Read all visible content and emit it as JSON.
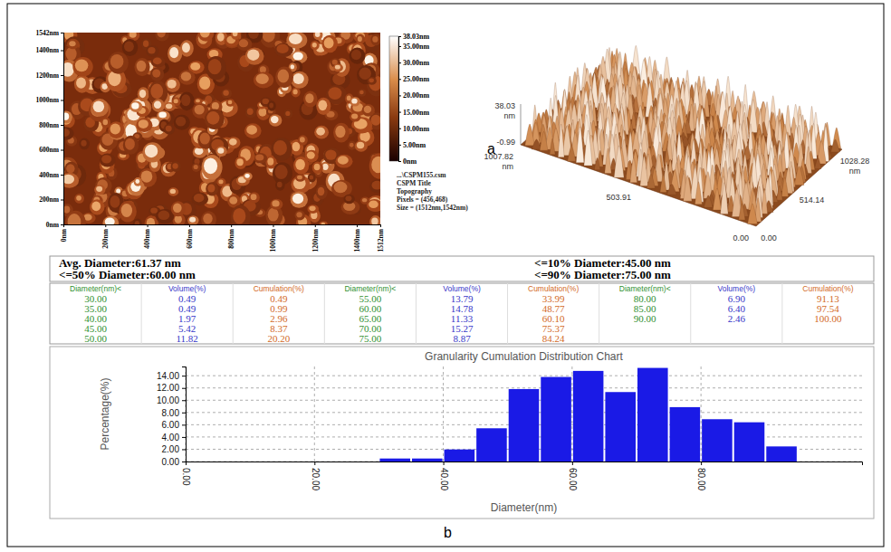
{
  "panel_labels": [
    "a",
    "b"
  ],
  "afm_image": {
    "xlim": [
      0,
      1512
    ],
    "xticks": [
      {
        "value": 0,
        "label": "0nm"
      },
      {
        "value": 200,
        "label": "200nm"
      },
      {
        "value": 400,
        "label": "400nm"
      },
      {
        "value": 600,
        "label": "600nm"
      },
      {
        "value": 800,
        "label": "800nm"
      },
      {
        "value": 1000,
        "label": "1000nm"
      },
      {
        "value": 1200,
        "label": "1200nm"
      },
      {
        "value": 1400,
        "label": "1400nm"
      },
      {
        "value": 1512,
        "label": "1512nm"
      }
    ],
    "ylim": [
      0,
      1542
    ],
    "yticks": [
      {
        "value": 0,
        "label": "0nm"
      },
      {
        "value": 200,
        "label": "200nm"
      },
      {
        "value": 400,
        "label": "400nm"
      },
      {
        "value": 600,
        "label": "600nm"
      },
      {
        "value": 800,
        "label": "800nm"
      },
      {
        "value": 1000,
        "label": "1000nm"
      },
      {
        "value": 1200,
        "label": "1200nm"
      },
      {
        "value": 1400,
        "label": "1400nm"
      },
      {
        "value": 1542,
        "label": "1542nm"
      }
    ],
    "colorbar": {
      "range": [
        0,
        38.03
      ],
      "ticks": [
        {
          "value": 38.03,
          "label": "38.03nm"
        },
        {
          "value": 35,
          "label": "35.00nm"
        },
        {
          "value": 30,
          "label": "30.00nm"
        },
        {
          "value": 25,
          "label": "25.00nm"
        },
        {
          "value": 20,
          "label": "20.00nm"
        },
        {
          "value": 15,
          "label": "15.00nm"
        },
        {
          "value": 10,
          "label": "10.00nm"
        },
        {
          "value": 5,
          "label": "5.00nm"
        },
        {
          "value": 0,
          "label": "0nm"
        }
      ]
    },
    "info": [
      "...\\CSPM155.csm",
      "CSPM Title",
      "Topography",
      "Pixels = (456,468)",
      "Size = (1512nm,1542nm)"
    ]
  },
  "afm_3d": {
    "z_labels": [
      "38.03",
      "-0.99"
    ],
    "z_unit": "nm",
    "x_labels": [
      "0.00",
      "503.91",
      "1007.82"
    ],
    "x_unit": "nm",
    "y_labels": [
      "0.00",
      "514.14",
      "1028.28"
    ],
    "y_unit": "nm"
  },
  "summary": {
    "avg": "Avg. Diameter:61.37 nm",
    "d10": "<=10% Diameter:45.00 nm",
    "d50": "<=50% Diameter:60.00 nm",
    "d90": "<=90% Diameter:75.00 nm"
  },
  "table": {
    "columns": [
      "Diameter(nm)<",
      "Volume(%)",
      "Cumulation(%)"
    ],
    "rows": [
      [
        "30.00",
        "0.49",
        "0.49"
      ],
      [
        "35.00",
        "0.49",
        "0.99"
      ],
      [
        "40.00",
        "1.97",
        "2.96"
      ],
      [
        "45.00",
        "5.42",
        "8.37"
      ],
      [
        "50.00",
        "11.82",
        "20.20"
      ],
      [
        "55.00",
        "13.79",
        "33.99"
      ],
      [
        "60.00",
        "14.78",
        "48.77"
      ],
      [
        "65.00",
        "11.33",
        "60.10"
      ],
      [
        "70.00",
        "15.27",
        "75.37"
      ],
      [
        "75.00",
        "8.87",
        "84.24"
      ],
      [
        "80.00",
        "6.90",
        "91.13"
      ],
      [
        "85.00",
        "6.40",
        "97.54"
      ],
      [
        "90.00",
        "2.46",
        "100.00"
      ]
    ]
  },
  "chart_data": {
    "type": "histogram",
    "title": "Granularity Cumulation Distribution Chart",
    "x_label": "Diameter(nm)",
    "y_label": "Percentage(%)",
    "bins": [
      30,
      35,
      40,
      45,
      50,
      55,
      60,
      65,
      70,
      75,
      80,
      85,
      90,
      95
    ],
    "values": [
      0.49,
      0.49,
      1.97,
      5.42,
      11.82,
      13.79,
      14.78,
      11.33,
      15.27,
      8.87,
      6.9,
      6.4,
      2.46
    ],
    "color": "#1a1ae6",
    "xlim": [
      0,
      105
    ],
    "xticks": [
      {
        "value": 0,
        "label": "0.00"
      },
      {
        "value": 20,
        "label": "20.00"
      },
      {
        "value": 40,
        "label": "40.00"
      },
      {
        "value": 60,
        "label": "60.00"
      },
      {
        "value": 80,
        "label": "80.00"
      }
    ],
    "ylim": [
      0,
      15.5
    ],
    "yticks": [
      {
        "value": 0,
        "label": "0.00"
      },
      {
        "value": 2,
        "label": "2.00"
      },
      {
        "value": 4,
        "label": "4.00"
      },
      {
        "value": 6,
        "label": "6.00"
      },
      {
        "value": 8,
        "label": "8.00"
      },
      {
        "value": 10,
        "label": "10.00"
      },
      {
        "value": 12,
        "label": "12.00"
      },
      {
        "value": 14,
        "label": "14.00"
      }
    ],
    "grid": true
  }
}
